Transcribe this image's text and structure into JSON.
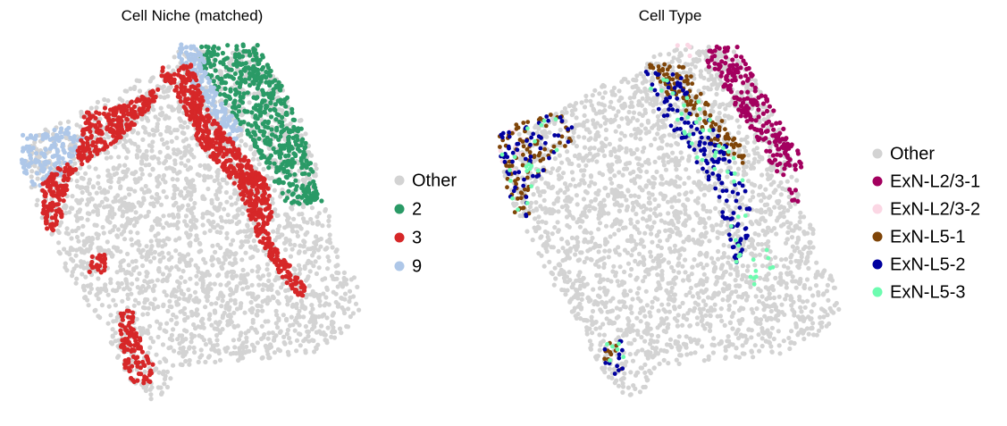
{
  "chart_data": [
    {
      "type": "scatter",
      "title": "Cell Niche (matched)",
      "xlabel": "",
      "ylabel": "",
      "axes": "off",
      "legend_position": "right",
      "series": [
        {
          "name": "Other",
          "color": "#d3d3d3"
        },
        {
          "name": "2",
          "color": "#2a9a66"
        },
        {
          "name": "3",
          "color": "#d62728"
        },
        {
          "name": "9",
          "color": "#aec7e8"
        }
      ]
    },
    {
      "type": "scatter",
      "title": "Cell Type",
      "xlabel": "",
      "ylabel": "",
      "axes": "off",
      "legend_position": "right",
      "series": [
        {
          "name": "Other",
          "color": "#d3d3d3"
        },
        {
          "name": "ExN-L2/3-1",
          "color": "#a3005f"
        },
        {
          "name": "ExN-L2/3-2",
          "color": "#fbd7e4"
        },
        {
          "name": "ExN-L5-1",
          "color": "#7f4508"
        },
        {
          "name": "ExN-L5-2",
          "color": "#00009f"
        },
        {
          "name": "ExN-L5-3",
          "color": "#6dfcb0"
        }
      ]
    }
  ]
}
